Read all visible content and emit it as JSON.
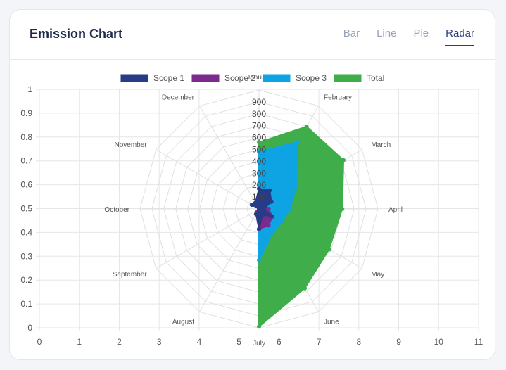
{
  "header": {
    "title": "Emission Chart",
    "tabs": [
      {
        "label": "Bar",
        "active": false
      },
      {
        "label": "Line",
        "active": false
      },
      {
        "label": "Pie",
        "active": false
      },
      {
        "label": "Radar",
        "active": true
      }
    ]
  },
  "colors": {
    "scope1": "#273b86",
    "scope2": "#7b2a8e",
    "scope3": "#0ea4e3",
    "total": "#3fae4a"
  },
  "chart_data": {
    "type": "radar",
    "categories": [
      "January",
      "February",
      "March",
      "April",
      "May",
      "June",
      "July",
      "August",
      "September",
      "October",
      "November",
      "December"
    ],
    "r_ticks": [
      "100",
      "200",
      "300",
      "400",
      "500",
      "600",
      "700",
      "800",
      "900"
    ],
    "r_max": 1000,
    "series": [
      {
        "name": "Scope 1",
        "values": [
          170,
          180,
          120,
          40,
          120,
          60,
          170,
          50,
          0,
          0,
          70,
          60
        ]
      },
      {
        "name": "Scope 2",
        "values": [
          30,
          40,
          40,
          80,
          130,
          160,
          170,
          30,
          0,
          0,
          0,
          0
        ]
      },
      {
        "name": "Scope 3",
        "values": [
          480,
          650,
          360,
          260,
          220,
          230,
          430,
          0,
          0,
          0,
          0,
          0
        ]
      },
      {
        "name": "Total",
        "values": [
          560,
          800,
          820,
          700,
          680,
          770,
          990,
          0,
          0,
          0,
          0,
          0
        ]
      }
    ],
    "background_axes": {
      "x_ticks": [
        "0",
        "1",
        "2",
        "3",
        "4",
        "5",
        "6",
        "7",
        "8",
        "9",
        "10",
        "11"
      ],
      "y_ticks": [
        "0",
        "0.1",
        "0.2",
        "0.3",
        "0.4",
        "0.5",
        "0.6",
        "0.7",
        "0.8",
        "0.9",
        "1"
      ],
      "xlim": [
        0,
        11
      ],
      "ylim": [
        0,
        1
      ]
    },
    "legend_position": "top",
    "grid": true
  }
}
